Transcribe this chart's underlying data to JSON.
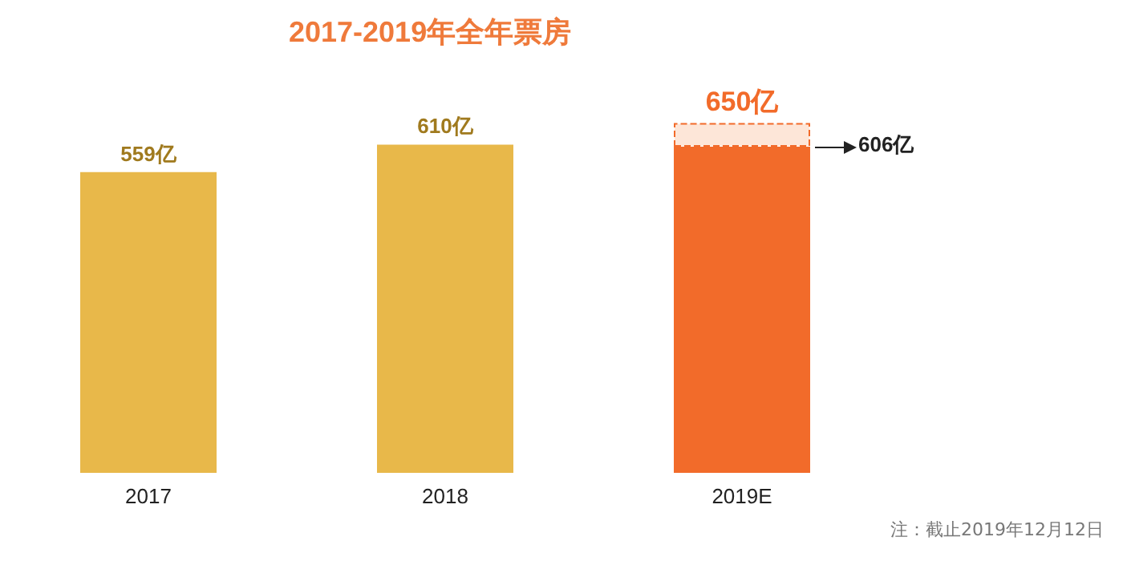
{
  "chart_data": {
    "type": "bar",
    "title": "2017-2019年全年票房",
    "categories": [
      "2017",
      "2018",
      "2019E"
    ],
    "stacked": true,
    "series": [
      {
        "colors": [
          "#e8b84a",
          "#e8b84a",
          "#f26b2a"
        ],
        "values": [
          559,
          610,
          606
        ],
        "value_labels": [
          "559亿",
          "610亿",
          "606亿"
        ]
      },
      {
        "color": "#fde6d8",
        "values": [
          null,
          null,
          44
        ]
      }
    ],
    "totals": [
      null,
      null,
      "650亿"
    ],
    "annotations": [
      "注：截止2019年12月12日"
    ]
  }
}
